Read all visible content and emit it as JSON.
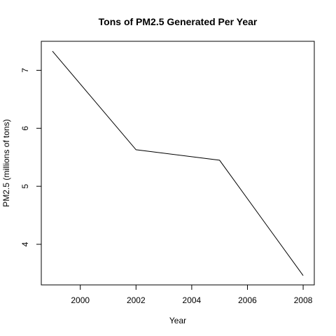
{
  "chart_data": {
    "type": "line",
    "title": "Tons of PM2.5 Generated Per Year",
    "xlabel": "Year",
    "ylabel": "PM2.5 (millions of tons)",
    "x": [
      1999,
      2002,
      2005,
      2008
    ],
    "series": [
      {
        "values": [
          7.33,
          5.63,
          5.45,
          3.46
        ]
      }
    ],
    "xlim": [
      1998.6,
      2008.4
    ],
    "ylim": [
      3.3,
      7.5
    ],
    "xticks": [
      2000,
      2002,
      2004,
      2006,
      2008
    ],
    "yticks": [
      4,
      5,
      6,
      7
    ],
    "xtick_labels": [
      "2000",
      "2002",
      "2004",
      "2006",
      "2008"
    ],
    "ytick_labels": [
      "4",
      "5",
      "6",
      "7"
    ],
    "line_color": "#000000",
    "grid": false,
    "legend": "none"
  }
}
